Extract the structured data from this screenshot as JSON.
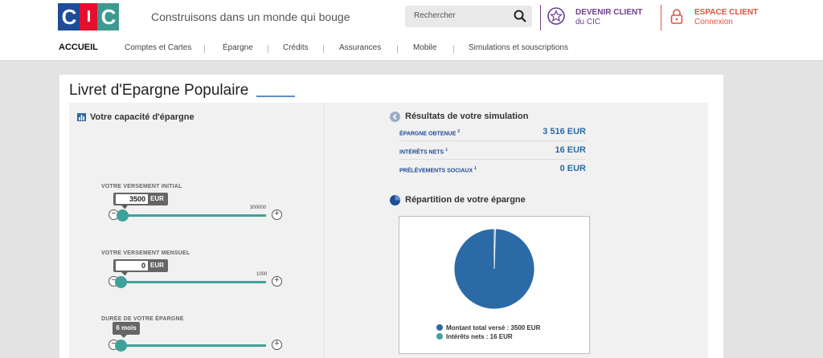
{
  "header": {
    "logo_text": "CIC",
    "tagline": "Construisons dans un monde qui bouge",
    "search_placeholder": "Rechercher",
    "become_client": {
      "title": "DEVENIR CLIENT",
      "subtitle": "du CIC"
    },
    "client_area": {
      "title": "ESPACE CLIENT",
      "subtitle": "Connexion"
    }
  },
  "nav": {
    "items": [
      "ACCUEIL",
      "Comptes et Cartes",
      "Épargne",
      "Crédits",
      "Assurances",
      "Mobile",
      "Simulations et souscriptions"
    ]
  },
  "page": {
    "title": "Livret d'Epargne Populaire"
  },
  "capacity": {
    "heading": "Votre capacité d'épargne",
    "initial": {
      "label": "VOTRE VERSEMENT INITIAL",
      "value": "3500",
      "unit": "EUR",
      "min": "0",
      "max": "300000",
      "fraction": 0.0117
    },
    "monthly": {
      "label": "VOTRE VERSEMENT MENSUEL",
      "value": "0",
      "unit": "EUR",
      "min": "0",
      "max": "1000",
      "fraction": 0.0
    },
    "duration": {
      "label": "DURÉE DE VOTRE ÉPARGNE",
      "value": "6 mois",
      "fraction": 0.0
    }
  },
  "results": {
    "heading": "Résultats de votre simulation",
    "rows": [
      {
        "label": "ÉPARGNE OBTENUE",
        "note": "2",
        "value": "3 516 EUR"
      },
      {
        "label": "INTÉRÊTS NETS",
        "note": "1",
        "value": "16 EUR"
      },
      {
        "label": "PRÉLÈVEMENTS SOCIAUX",
        "note": "1",
        "value": "0 EUR"
      }
    ]
  },
  "breakdown": {
    "heading": "Répartition de votre épargne",
    "colors": {
      "principal": "#2b6aa6",
      "interest": "#3fa29a"
    }
  },
  "chart_data": {
    "type": "pie",
    "title": "",
    "slices": [
      {
        "label": "Montant total versé : 3500 EUR",
        "value": 3500,
        "color": "#2b6aa6"
      },
      {
        "label": "Intérêts nets : 16 EUR",
        "value": 16,
        "color": "#3fa29a"
      }
    ]
  }
}
